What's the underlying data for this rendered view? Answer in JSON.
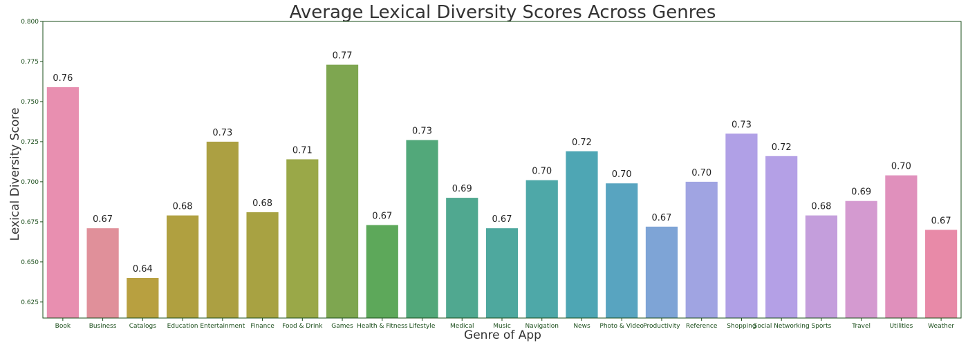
{
  "chart_data": {
    "type": "bar",
    "title": "Average Lexical Diversity Scores Across Genres",
    "xlabel": "Genre of App",
    "ylabel": "Lexical Diversity Score",
    "ylim": [
      0.615,
      0.8
    ],
    "yticks": [
      0.625,
      0.65,
      0.675,
      0.7,
      0.725,
      0.75,
      0.775,
      0.8
    ],
    "ytick_labels": [
      "0.625",
      "0.650",
      "0.675",
      "0.700",
      "0.725",
      "0.750",
      "0.775",
      "0.800"
    ],
    "grid": false,
    "categories": [
      "Book",
      "Business",
      "Catalogs",
      "Education",
      "Entertainment",
      "Finance",
      "Food & Drink",
      "Games",
      "Health & Fitness",
      "Lifestyle",
      "Medical",
      "Music",
      "Navigation",
      "News",
      "Photo & Video",
      "Productivity",
      "Reference",
      "Shopping",
      "Social Networking",
      "Sports",
      "Travel",
      "Utilities",
      "Weather"
    ],
    "values": [
      0.759,
      0.671,
      0.64,
      0.679,
      0.725,
      0.681,
      0.714,
      0.773,
      0.673,
      0.726,
      0.69,
      0.671,
      0.701,
      0.719,
      0.699,
      0.672,
      0.7,
      0.73,
      0.716,
      0.679,
      0.688,
      0.704,
      0.67
    ],
    "value_labels": [
      "0.76",
      "0.67",
      "0.64",
      "0.68",
      "0.73",
      "0.68",
      "0.71",
      "0.77",
      "0.67",
      "0.73",
      "0.69",
      "0.67",
      "0.70",
      "0.72",
      "0.70",
      "0.67",
      "0.70",
      "0.73",
      "0.72",
      "0.68",
      "0.69",
      "0.70",
      "0.67"
    ],
    "colors": [
      "#e88fb0",
      "#e0909a",
      "#b8a040",
      "#b0a040",
      "#aca042",
      "#a8a242",
      "#9aa848",
      "#7ea650",
      "#5da85a",
      "#52a87a",
      "#50a890",
      "#4ea89e",
      "#4ea8a8",
      "#4ea6b4",
      "#58a4c0",
      "#7ea4d6",
      "#a0a4e2",
      "#b0a0e6",
      "#b4a0e6",
      "#c49edc",
      "#d49ad0",
      "#e090bc",
      "#e88aa8"
    ]
  }
}
